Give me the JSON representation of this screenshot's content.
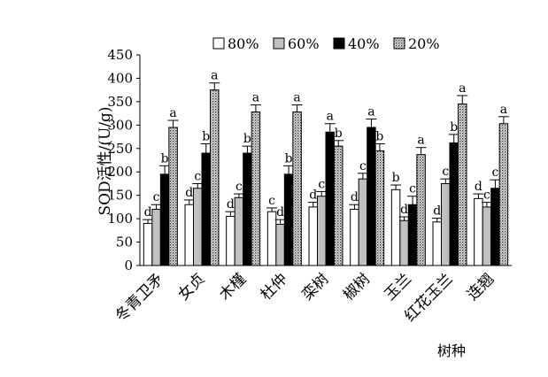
{
  "chart_data": {
    "type": "bar",
    "ylabel": "SOD活性/(U/g)",
    "xlabel": "树种",
    "ylim": [
      0,
      450
    ],
    "yticks": [
      "0",
      "50",
      "100",
      "150",
      "200",
      "250",
      "300",
      "350",
      "400",
      "450"
    ],
    "grid": false,
    "legend_position": "top",
    "categories": [
      "冬青卫矛",
      "女贞",
      "木槿",
      "杜仲",
      "栾树",
      "椒树",
      "玉兰",
      "红花玉兰",
      "连翘"
    ],
    "series": [
      {
        "name": "80%",
        "fill": "#ffffff",
        "pattern": "none",
        "values": [
          90,
          130,
          105,
          115,
          125,
          120,
          162,
          93,
          143
        ],
        "errors": [
          8,
          10,
          10,
          8,
          10,
          10,
          10,
          8,
          10
        ],
        "letters": [
          "d",
          "d",
          "d",
          "c",
          "d",
          "d",
          "b",
          "d",
          "d"
        ]
      },
      {
        "name": "60%",
        "fill": "#c0c0c0",
        "pattern": "none",
        "values": [
          120,
          165,
          145,
          88,
          148,
          185,
          96,
          175,
          125
        ],
        "errors": [
          10,
          10,
          8,
          10,
          10,
          12,
          8,
          10,
          10
        ],
        "letters": [
          "c",
          "c",
          "c",
          "d",
          "c",
          "c",
          "d",
          "c",
          "c"
        ]
      },
      {
        "name": "40%",
        "fill": "#000000",
        "pattern": "none",
        "values": [
          195,
          240,
          240,
          195,
          285,
          295,
          130,
          262,
          165
        ],
        "errors": [
          18,
          20,
          15,
          18,
          18,
          18,
          18,
          18,
          18
        ],
        "letters": [
          "b",
          "b",
          "b",
          "b",
          "a",
          "a",
          "c",
          "b",
          "c"
        ]
      },
      {
        "name": "20%",
        "fill": "#a0a0a0",
        "pattern": "dots",
        "values": [
          295,
          375,
          328,
          328,
          255,
          245,
          237,
          345,
          303
        ],
        "errors": [
          15,
          15,
          15,
          15,
          12,
          15,
          15,
          18,
          15
        ],
        "letters": [
          "a",
          "a",
          "a",
          "a",
          "b",
          "b",
          "a",
          "a",
          "a"
        ]
      }
    ]
  }
}
